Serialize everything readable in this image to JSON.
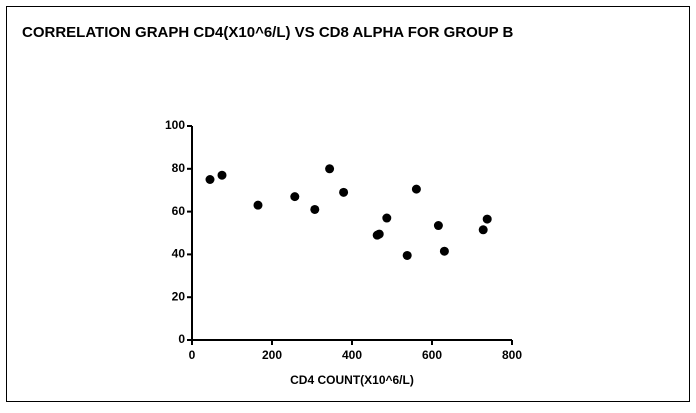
{
  "chart_data": {
    "type": "scatter",
    "title": "CORRELATION GRAPH CD4(X10^6/L) VS CD8 ALPHA FOR GROUP B",
    "x_label": "CD4 COUNT(X10^6/L)",
    "color": "#000000",
    "series": [
      {
        "x": [
          45,
          75,
          165,
          257,
          307,
          344,
          379,
          463,
          468,
          487,
          538,
          561,
          616,
          631,
          728,
          738
        ],
        "values": [
          75,
          77,
          63,
          67,
          61,
          80,
          69,
          49,
          49.5,
          57,
          39.5,
          70.5,
          53.5,
          41.5,
          51.5,
          56.5
        ]
      }
    ],
    "xlim": [
      0,
      800
    ],
    "xticks": [
      0,
      200,
      400,
      600,
      800
    ],
    "ylim": [
      0,
      100
    ],
    "yticks": [
      0,
      20,
      40,
      60,
      80,
      100
    ]
  }
}
